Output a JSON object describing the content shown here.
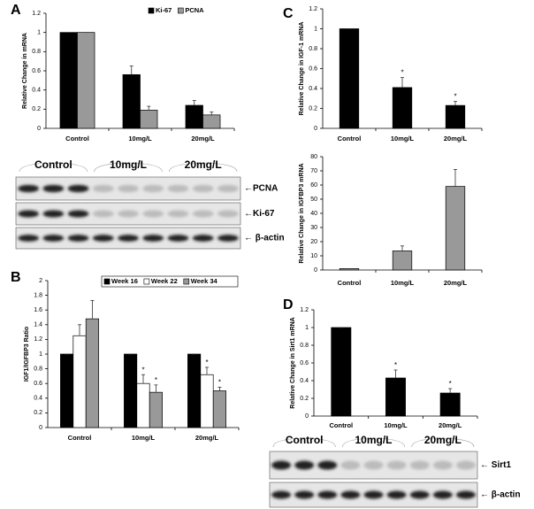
{
  "chart_data": [
    {
      "type": "bar",
      "panel": "A",
      "ylabel": "Relative Change in mRNA",
      "categories": [
        "Control",
        "10mg/L",
        "20mg/L"
      ],
      "series": [
        {
          "name": "Ki-67",
          "color": "#000000",
          "values": [
            1,
            0.56,
            0.24
          ],
          "errors": [
            0,
            0.09,
            0.05
          ]
        },
        {
          "name": "PCNA",
          "color": "#999999",
          "values": [
            1,
            0.19,
            0.14
          ],
          "errors": [
            0,
            0.04,
            0.03
          ]
        }
      ],
      "ylim": [
        0,
        1.2
      ],
      "yticks": [
        0,
        0.2,
        0.4,
        0.6,
        0.8,
        1,
        1.2
      ],
      "legend": "upper right"
    },
    {
      "type": "bar",
      "panel": "B",
      "ylabel": "IGF1/IGFBP3 Ratio",
      "categories": [
        "Control",
        "10mg/L",
        "20mg/L"
      ],
      "series": [
        {
          "name": "Week 16",
          "color": "#000000",
          "values": [
            1,
            1,
            1
          ],
          "errors": [
            0,
            0,
            0
          ],
          "significance": [
            null,
            null,
            null
          ]
        },
        {
          "name": "Week 22",
          "color": "#ffffff",
          "values": [
            1.25,
            0.6,
            0.72
          ],
          "errors": [
            0.15,
            0.12,
            0.1
          ],
          "significance": [
            null,
            "*",
            "*"
          ]
        },
        {
          "name": "Week 34",
          "color": "#999999",
          "values": [
            1.48,
            0.48,
            0.5
          ],
          "errors": [
            0.25,
            0.1,
            0.05
          ],
          "significance": [
            null,
            "*",
            "*"
          ]
        }
      ],
      "ylim": [
        0,
        2
      ],
      "yticks": [
        0,
        0.2,
        0.4,
        0.6,
        0.8,
        1,
        1.2,
        1.4,
        1.6,
        1.8,
        2
      ],
      "legend": "upper right"
    },
    {
      "type": "bar",
      "panel": "C",
      "ylabel": "Relative Change in IGF-1 mRNA",
      "categories": [
        "Control",
        "10mg/L",
        "20mg/L"
      ],
      "series": [
        {
          "color": "#000000",
          "values": [
            1,
            0.41,
            0.23
          ],
          "errors": [
            0,
            0.1,
            0.04
          ],
          "significance": [
            null,
            "*",
            "*"
          ]
        }
      ],
      "ylim": [
        0,
        1.2
      ],
      "yticks": [
        0,
        0.2,
        0.4,
        0.6,
        0.8,
        1,
        1.2
      ]
    },
    {
      "type": "bar",
      "ylabel": "Relative Change in IGFBP3 mRNA",
      "categories": [
        "Control",
        "10mg/L",
        "20mg/L"
      ],
      "series": [
        {
          "color": "#999999",
          "values": [
            1,
            13.5,
            59
          ],
          "errors": [
            0,
            3.5,
            12
          ]
        }
      ],
      "ylim": [
        0,
        80
      ],
      "yticks": [
        0,
        10,
        20,
        30,
        40,
        50,
        60,
        70,
        80
      ]
    },
    {
      "type": "bar",
      "panel": "D",
      "ylabel": "Relative Change in Sirt1 mRNA",
      "categories": [
        "Control",
        "10mg/L",
        "20mg/L"
      ],
      "series": [
        {
          "color": "#000000",
          "values": [
            1,
            0.43,
            0.26
          ],
          "errors": [
            0,
            0.09,
            0.05
          ],
          "significance": [
            null,
            "*",
            "*"
          ]
        }
      ],
      "ylim": [
        0,
        1.2
      ],
      "yticks": [
        0,
        0.2,
        0.4,
        0.6,
        0.8,
        1,
        1.2
      ]
    }
  ],
  "blots": [
    {
      "groups": [
        "Control",
        "10mg/L",
        "20mg/L"
      ],
      "bands": [
        "←PCNA",
        "←Ki-67",
        "← β-actin"
      ]
    },
    {
      "groups": [
        "Control",
        "10mg/L",
        "20mg/L"
      ],
      "bands": [
        "← Sirt1",
        "← β-actin"
      ]
    }
  ]
}
